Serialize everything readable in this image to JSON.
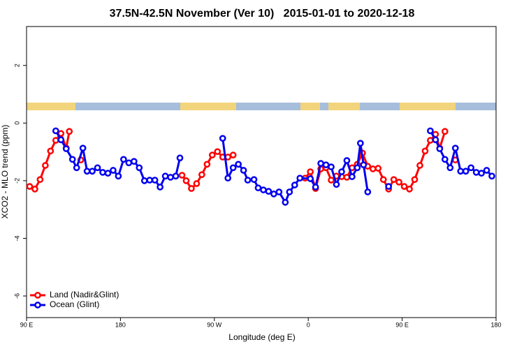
{
  "chart_data": {
    "type": "line",
    "title": "37.5N-42.5N November (Ver 10)   2015-01-01 to 2020-12-18",
    "x_label": "Longitude (deg E)",
    "y_label": "XCO2 - MLO trend (ppm)",
    "xlim": [
      90,
      540
    ],
    "ylim": [
      -6.75,
      3.35
    ],
    "xticks": [
      {
        "value": 90,
        "label": "90 E"
      },
      180,
      {
        "value": 270,
        "label": "90 W"
      },
      {
        "value": 360,
        "label": "0"
      },
      {
        "value": 450,
        "label": "90 E"
      },
      {
        "value": 540,
        "label": "180"
      }
    ],
    "yticks": [
      2,
      0,
      -2,
      -4,
      -6
    ],
    "legend": "bottom-left",
    "series": [
      {
        "name": "Land (Nadir&Glint)",
        "color": "#ff0000",
        "x": [
          93,
          98,
          103,
          108,
          113,
          118,
          123,
          128,
          131,
          null,
          142,
          null,
          239,
          243,
          248,
          253,
          258,
          263,
          268,
          273,
          278,
          283,
          288,
          null,
          357,
          362,
          367,
          372,
          377,
          382,
          387,
          392,
          397,
          402,
          407,
          412,
          417,
          422,
          427,
          432,
          437,
          442,
          447,
          452,
          457,
          462,
          467,
          472,
          477,
          482,
          486,
          491,
          null,
          501
        ],
        "values": [
          -2.2,
          -2.29,
          -1.96,
          -1.47,
          -0.97,
          -0.6,
          -0.36,
          -0.87,
          -0.29,
          null,
          -1.28,
          null,
          -1.81,
          -2.0,
          -2.27,
          -2.1,
          -1.79,
          -1.43,
          -1.11,
          -0.99,
          -1.18,
          -1.18,
          -1.11,
          null,
          -1.91,
          -1.69,
          -2.27,
          -1.59,
          -1.55,
          -1.98,
          -1.84,
          -1.86,
          -1.88,
          -1.55,
          -1.43,
          -1.04,
          -1.5,
          -1.59,
          -1.57,
          -1.96,
          -2.29,
          -1.96,
          -2.05,
          -2.2,
          -2.29,
          -1.96,
          -1.47,
          -0.97,
          -0.6,
          -0.39,
          -0.87,
          -0.29,
          null,
          -1.28
        ]
      },
      {
        "name": "Ocean (Glint)",
        "color": "#0000ee",
        "x": [
          118,
          123,
          128,
          134,
          138,
          144,
          148,
          153,
          158,
          163,
          168,
          173,
          178,
          183,
          188,
          193,
          198,
          203,
          208,
          213,
          218,
          223,
          228,
          233,
          237,
          null,
          278,
          283,
          288,
          293,
          298,
          302,
          308,
          312,
          317,
          322,
          327,
          332,
          338,
          342,
          347,
          352,
          362,
          367,
          372,
          377,
          382,
          387,
          392,
          397,
          402,
          407,
          410,
          413,
          417,
          null,
          437,
          null,
          477,
          482,
          486,
          491,
          496,
          501,
          506,
          511,
          516,
          521,
          526,
          531,
          536
        ],
        "values": [
          -0.27,
          -0.58,
          -0.89,
          -1.26,
          -1.55,
          -0.87,
          -1.67,
          -1.67,
          -1.55,
          -1.71,
          -1.74,
          -1.64,
          -1.84,
          -1.26,
          -1.38,
          -1.33,
          -1.55,
          -2.0,
          -1.98,
          -1.98,
          -2.22,
          -1.84,
          -1.88,
          -1.84,
          -1.21,
          null,
          -0.53,
          -1.91,
          -1.55,
          -1.43,
          -1.64,
          -1.98,
          -1.96,
          -2.25,
          -2.32,
          -2.37,
          -2.46,
          -2.39,
          -2.75,
          -2.39,
          -2.15,
          -1.91,
          -1.93,
          -2.22,
          -1.4,
          -1.45,
          -1.52,
          -2.13,
          -1.69,
          -1.3,
          -1.86,
          -1.55,
          -0.7,
          -1.45,
          -2.39,
          null,
          -2.2,
          null,
          -0.27,
          -0.58,
          -0.89,
          -1.26,
          -1.55,
          -0.87,
          -1.67,
          -1.67,
          -1.55,
          -1.71,
          -1.74,
          -1.64,
          -1.84
        ]
      }
    ]
  }
}
